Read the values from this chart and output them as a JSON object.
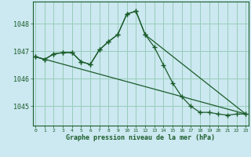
{
  "title": "Graphe pression niveau de la mer (hPa)",
  "bg_color": "#cce8f0",
  "grid_color": "#99ccbb",
  "line_color": "#1a5c2a",
  "xlim": [
    -0.3,
    23.3
  ],
  "ylim": [
    1044.3,
    1048.8
  ],
  "yticks": [
    1045,
    1046,
    1047,
    1048
  ],
  "xtick_labels": [
    "0",
    "1",
    "2",
    "3",
    "4",
    "5",
    "6",
    "7",
    "8",
    "9",
    "10",
    "11",
    "12",
    "13",
    "14",
    "15",
    "16",
    "17",
    "18",
    "19",
    "20",
    "21",
    "22",
    "23"
  ],
  "series1_x": [
    0,
    1,
    2,
    3,
    4,
    5,
    6,
    7,
    8,
    9,
    10,
    11,
    12,
    13,
    14,
    15,
    16,
    17,
    18,
    19,
    20,
    21,
    22,
    23
  ],
  "series1_y": [
    1046.8,
    1046.7,
    1046.9,
    1046.95,
    1046.95,
    1046.62,
    1046.52,
    1047.05,
    1047.35,
    1047.6,
    1048.35,
    1048.45,
    1047.6,
    1047.15,
    1046.5,
    1045.85,
    1045.35,
    1045.0,
    1044.78,
    1044.78,
    1044.72,
    1044.68,
    1044.72,
    1044.72
  ],
  "series2_x": [
    0,
    1,
    2,
    3,
    4,
    5,
    6,
    7,
    8,
    9,
    10,
    11,
    12,
    23
  ],
  "series2_y": [
    1046.8,
    1046.7,
    1046.9,
    1046.95,
    1046.95,
    1046.62,
    1046.52,
    1047.05,
    1047.35,
    1047.6,
    1048.35,
    1048.45,
    1047.6,
    1044.72
  ],
  "series3_x": [
    0,
    23
  ],
  "series3_y": [
    1046.8,
    1044.72
  ]
}
